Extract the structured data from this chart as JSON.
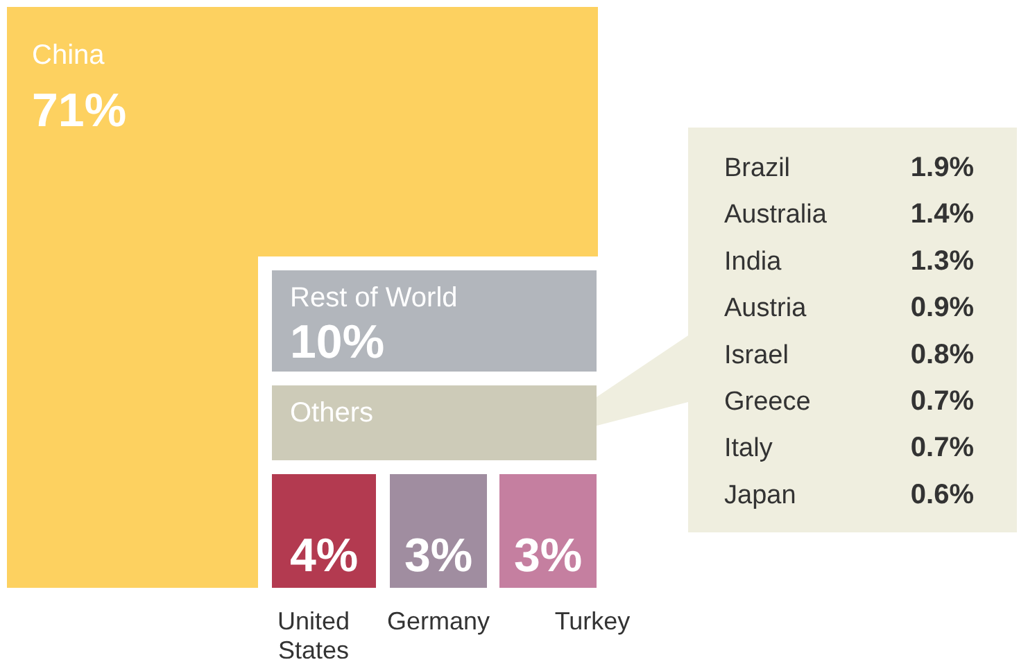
{
  "chart_data": [
    {
      "type": "other",
      "categories": [
        "China",
        "Rest of World",
        "Others",
        "United States",
        "Germany",
        "Turkey"
      ],
      "values": [
        71,
        10,
        null,
        4,
        3,
        3
      ],
      "value_labels": [
        "71%",
        "10%",
        null,
        "4%",
        "3%",
        "3%"
      ],
      "colors": [
        "#fdd160",
        "#b2b6bc",
        "#cdcbb8",
        "#b33a50",
        "#a08da0",
        "#c57fa0"
      ]
    },
    {
      "type": "other",
      "categories": [
        "Brazil",
        "Australia",
        "India",
        "Austria",
        "Israel",
        "Greece",
        "Italy",
        "Japan"
      ],
      "values": [
        1.9,
        1.4,
        1.3,
        0.9,
        0.8,
        0.7,
        0.7,
        0.6
      ],
      "value_labels": [
        "1.9%",
        "1.4%",
        "1.3%",
        "0.9%",
        "0.8%",
        "0.7%",
        "0.7%",
        "0.6%"
      ]
    }
  ]
}
